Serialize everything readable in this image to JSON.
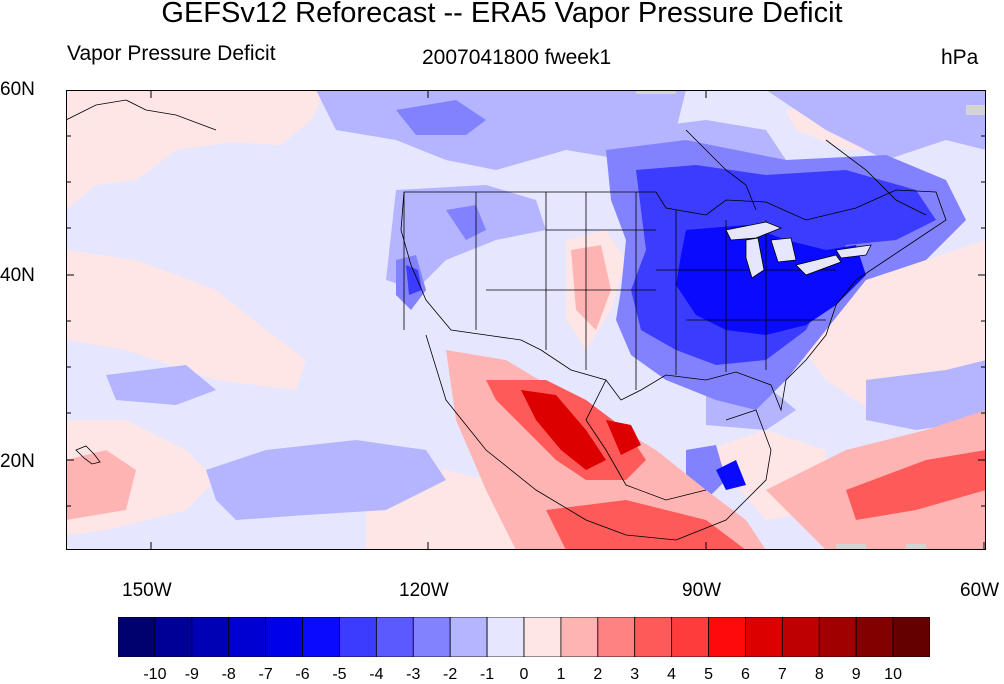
{
  "title": "GEFSv12 Reforecast -- ERA5 Vapor Pressure Deficit",
  "left_subtitle": "Vapor Pressure Deficit",
  "center_subtitle": "2007041800 fweek1",
  "units": "hPa",
  "lat_labels": [
    "60N",
    "40N",
    "20N"
  ],
  "lon_labels": [
    "150W",
    "120W",
    "90W",
    "60W"
  ],
  "colorbar": {
    "labels": [
      "-10",
      "-9",
      "-8",
      "-7",
      "-6",
      "-5",
      "-4",
      "-3",
      "-2",
      "-1",
      "0",
      "1",
      "2",
      "3",
      "4",
      "5",
      "6",
      "7",
      "8",
      "9",
      "10"
    ],
    "colors": [
      "#00006e",
      "#000096",
      "#0000b4",
      "#0000d2",
      "#0000eb",
      "#0a0aff",
      "#3c3cff",
      "#5a5aff",
      "#8282ff",
      "#b4b4ff",
      "#e6e6ff",
      "#ffe6e6",
      "#ffb4b4",
      "#ff8282",
      "#ff5a5a",
      "#ff3c3c",
      "#ff0a0a",
      "#dc0000",
      "#be0000",
      "#a00000",
      "#820000",
      "#640000"
    ]
  }
}
